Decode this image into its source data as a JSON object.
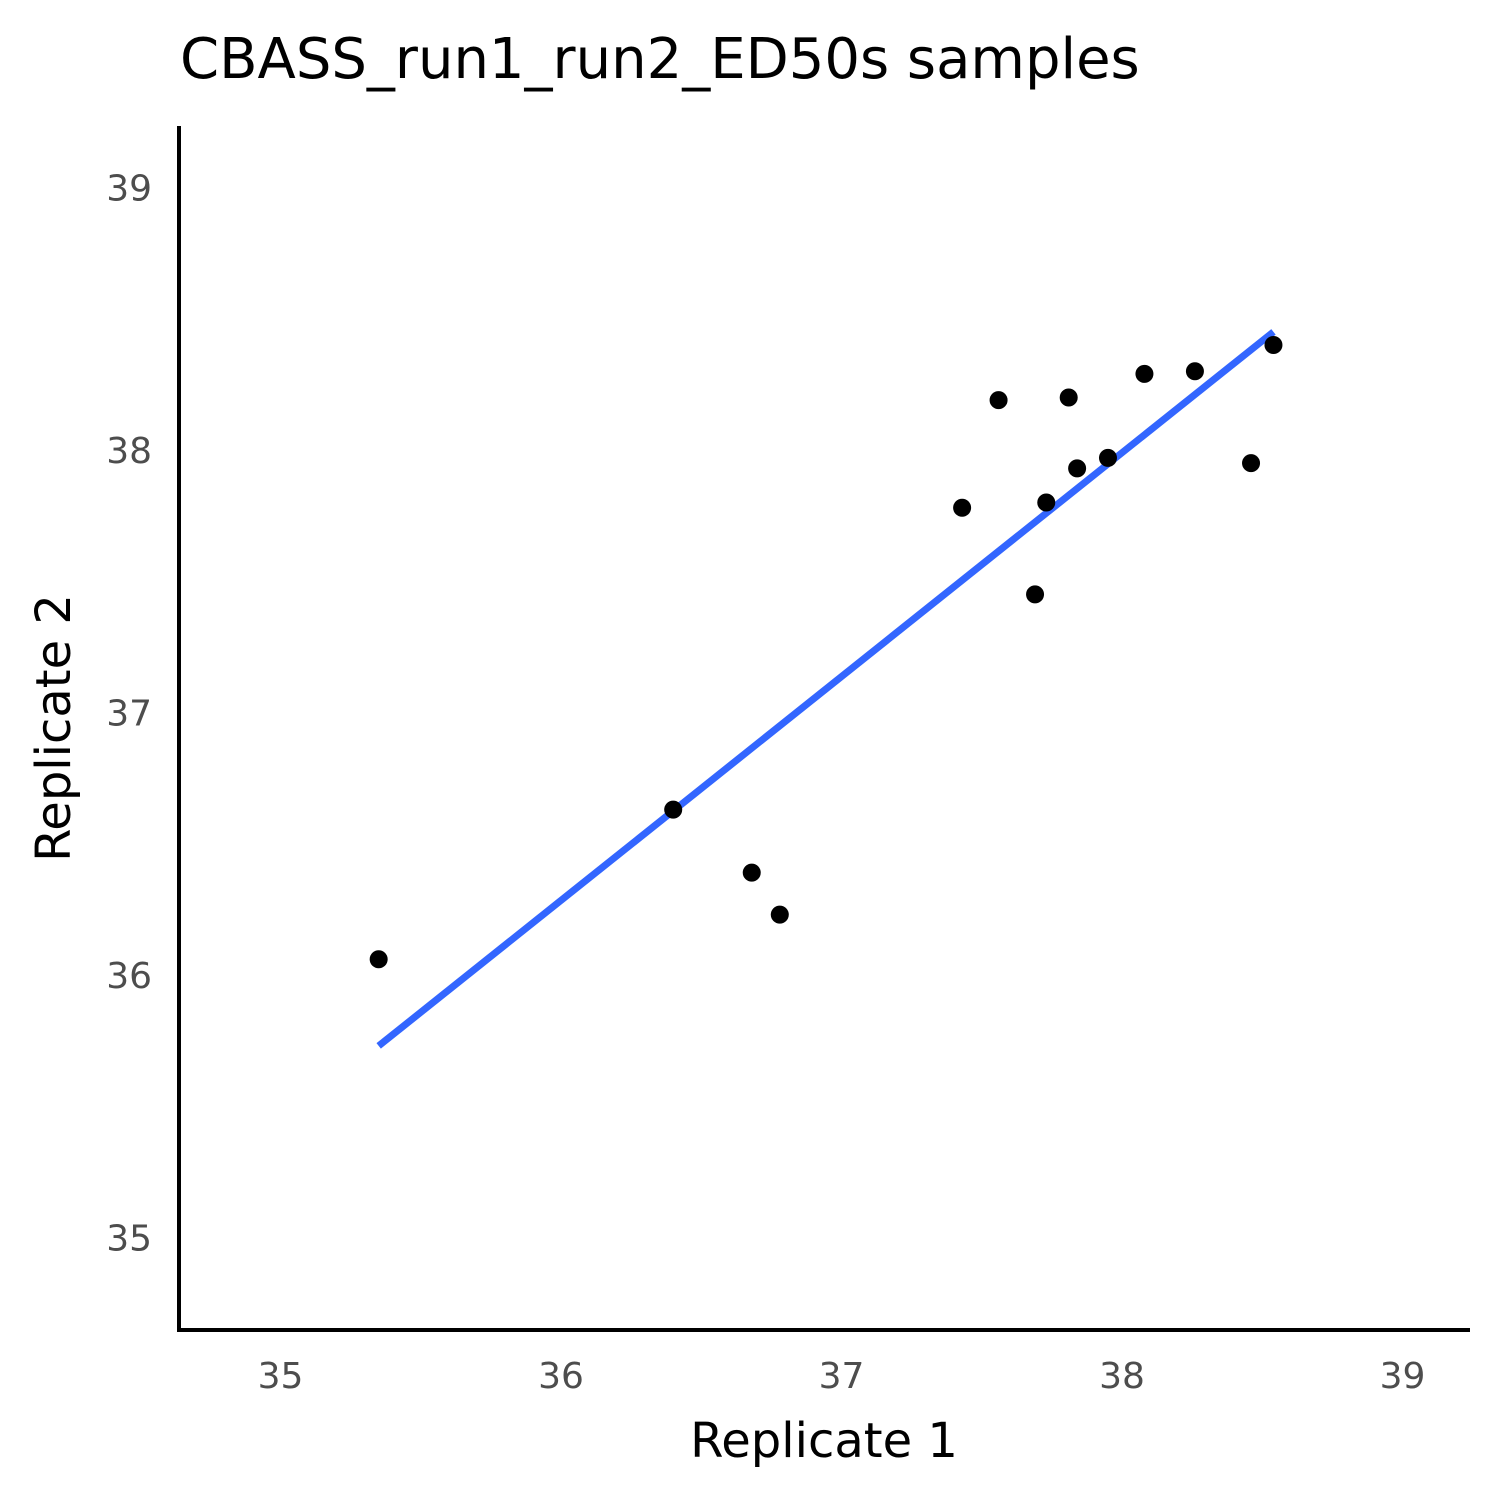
{
  "chart_data": {
    "type": "scatter",
    "title": "CBASS_run1_run2_ED50s samples",
    "xlabel": "Replicate 1",
    "ylabel": "Replicate 2",
    "xlim": [
      34.65,
      39.25
    ],
    "ylim": [
      34.65,
      39.25
    ],
    "xticks": [
      "35",
      "36",
      "37",
      "38",
      "39"
    ],
    "yticks": [
      "35",
      "36",
      "37",
      "38",
      "39"
    ],
    "grid": false,
    "points": [
      {
        "x": 35.35,
        "y": 36.06
      },
      {
        "x": 36.4,
        "y": 36.63
      },
      {
        "x": 36.68,
        "y": 36.39
      },
      {
        "x": 36.78,
        "y": 36.23
      },
      {
        "x": 37.43,
        "y": 37.78
      },
      {
        "x": 37.56,
        "y": 38.19
      },
      {
        "x": 37.69,
        "y": 37.45
      },
      {
        "x": 37.73,
        "y": 37.8
      },
      {
        "x": 37.81,
        "y": 38.2
      },
      {
        "x": 37.84,
        "y": 37.93
      },
      {
        "x": 37.95,
        "y": 37.97
      },
      {
        "x": 38.08,
        "y": 38.29
      },
      {
        "x": 38.26,
        "y": 38.3
      },
      {
        "x": 38.46,
        "y": 37.95
      },
      {
        "x": 38.54,
        "y": 38.4
      }
    ],
    "fit_line": {
      "x": [
        35.35,
        38.54
      ],
      "y": [
        35.73,
        38.45
      ]
    },
    "colors": {
      "points": "#000000",
      "fit_line": "#3366ff"
    }
  }
}
